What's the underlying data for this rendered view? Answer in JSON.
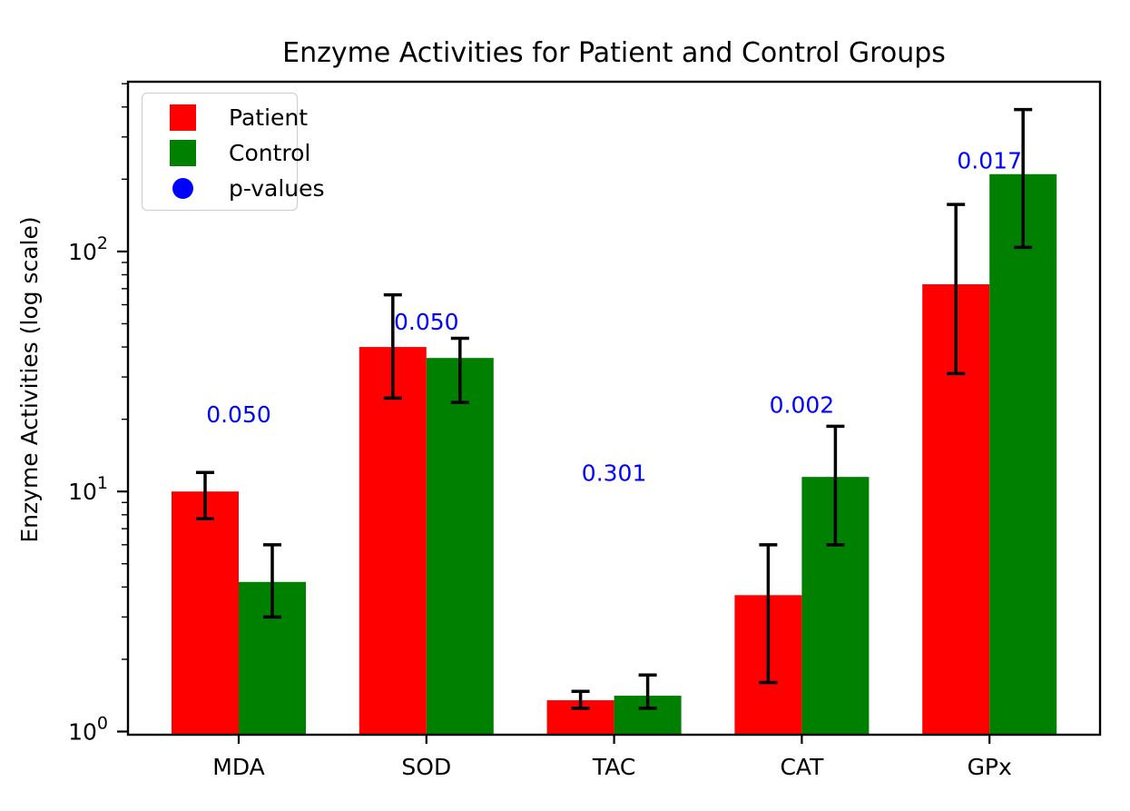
{
  "chart_data": {
    "type": "bar",
    "title": "Enzyme Activities for Patient and Control Groups",
    "ylabel": "Enzyme Activities (log scale)",
    "xlabel": "",
    "yscale": "log",
    "ylim": [
      1,
      500
    ],
    "ytick_exponents": [
      0,
      1,
      2
    ],
    "grid": false,
    "legend_position": "upper left",
    "categories": [
      "MDA",
      "SOD",
      "TAC",
      "CAT",
      "GPx"
    ],
    "series": [
      {
        "name": "Patient",
        "color": "#ff0000",
        "values": [
          10.0,
          40.0,
          1.35,
          3.7,
          73
        ],
        "err_low": [
          7.7,
          24.5,
          1.25,
          1.6,
          31
        ],
        "err_high": [
          12.0,
          66.0,
          1.47,
          6.0,
          157
        ]
      },
      {
        "name": "Control",
        "color": "#008000",
        "values": [
          4.2,
          36.0,
          1.41,
          11.5,
          210
        ],
        "err_low": [
          3.0,
          23.5,
          1.25,
          6.0,
          104
        ],
        "err_high": [
          6.0,
          43.5,
          1.72,
          18.7,
          390
        ]
      }
    ],
    "p_values": {
      "name": "p-values",
      "color": "#0000ff",
      "labels": [
        "0.050",
        "0.050",
        "0.301",
        "0.002",
        "0.017"
      ],
      "label_y": [
        21,
        51,
        12,
        23,
        240
      ]
    },
    "colors": {
      "axis": "#000000",
      "error_bar": "#000000",
      "background": "#ffffff",
      "text": "#000000"
    }
  }
}
